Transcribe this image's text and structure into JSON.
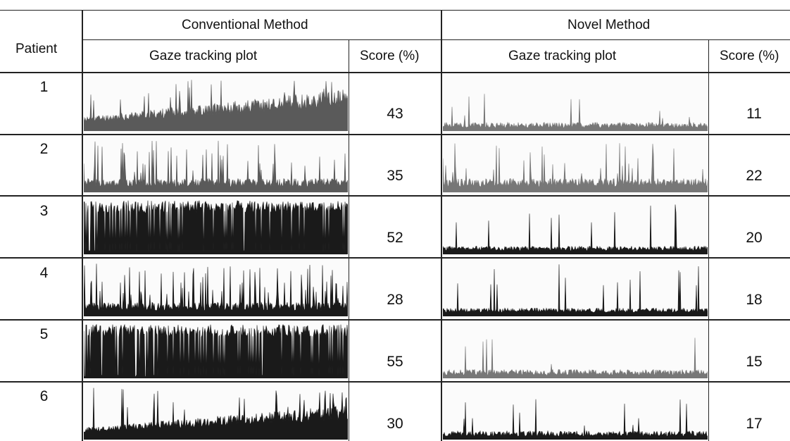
{
  "table": {
    "header": {
      "patient": "Patient",
      "conventional": "Conventional Method",
      "novel": "Novel Method",
      "plot_col": "Gaze tracking plot",
      "score_col": "Score (%)"
    },
    "rows": [
      {
        "patient": "1",
        "conv_score": "43",
        "novel_score": "11"
      },
      {
        "patient": "2",
        "conv_score": "35",
        "novel_score": "22"
      },
      {
        "patient": "3",
        "conv_score": "52",
        "novel_score": "20"
      },
      {
        "patient": "4",
        "conv_score": "28",
        "novel_score": "18"
      },
      {
        "patient": "5",
        "conv_score": "55",
        "novel_score": "15"
      },
      {
        "patient": "6",
        "conv_score": "30",
        "novel_score": "17"
      }
    ]
  },
  "colors": {
    "dark_plot": "#1a1a1a",
    "gray_plot": "#5a5a5a",
    "light_plot": "#777777"
  }
}
